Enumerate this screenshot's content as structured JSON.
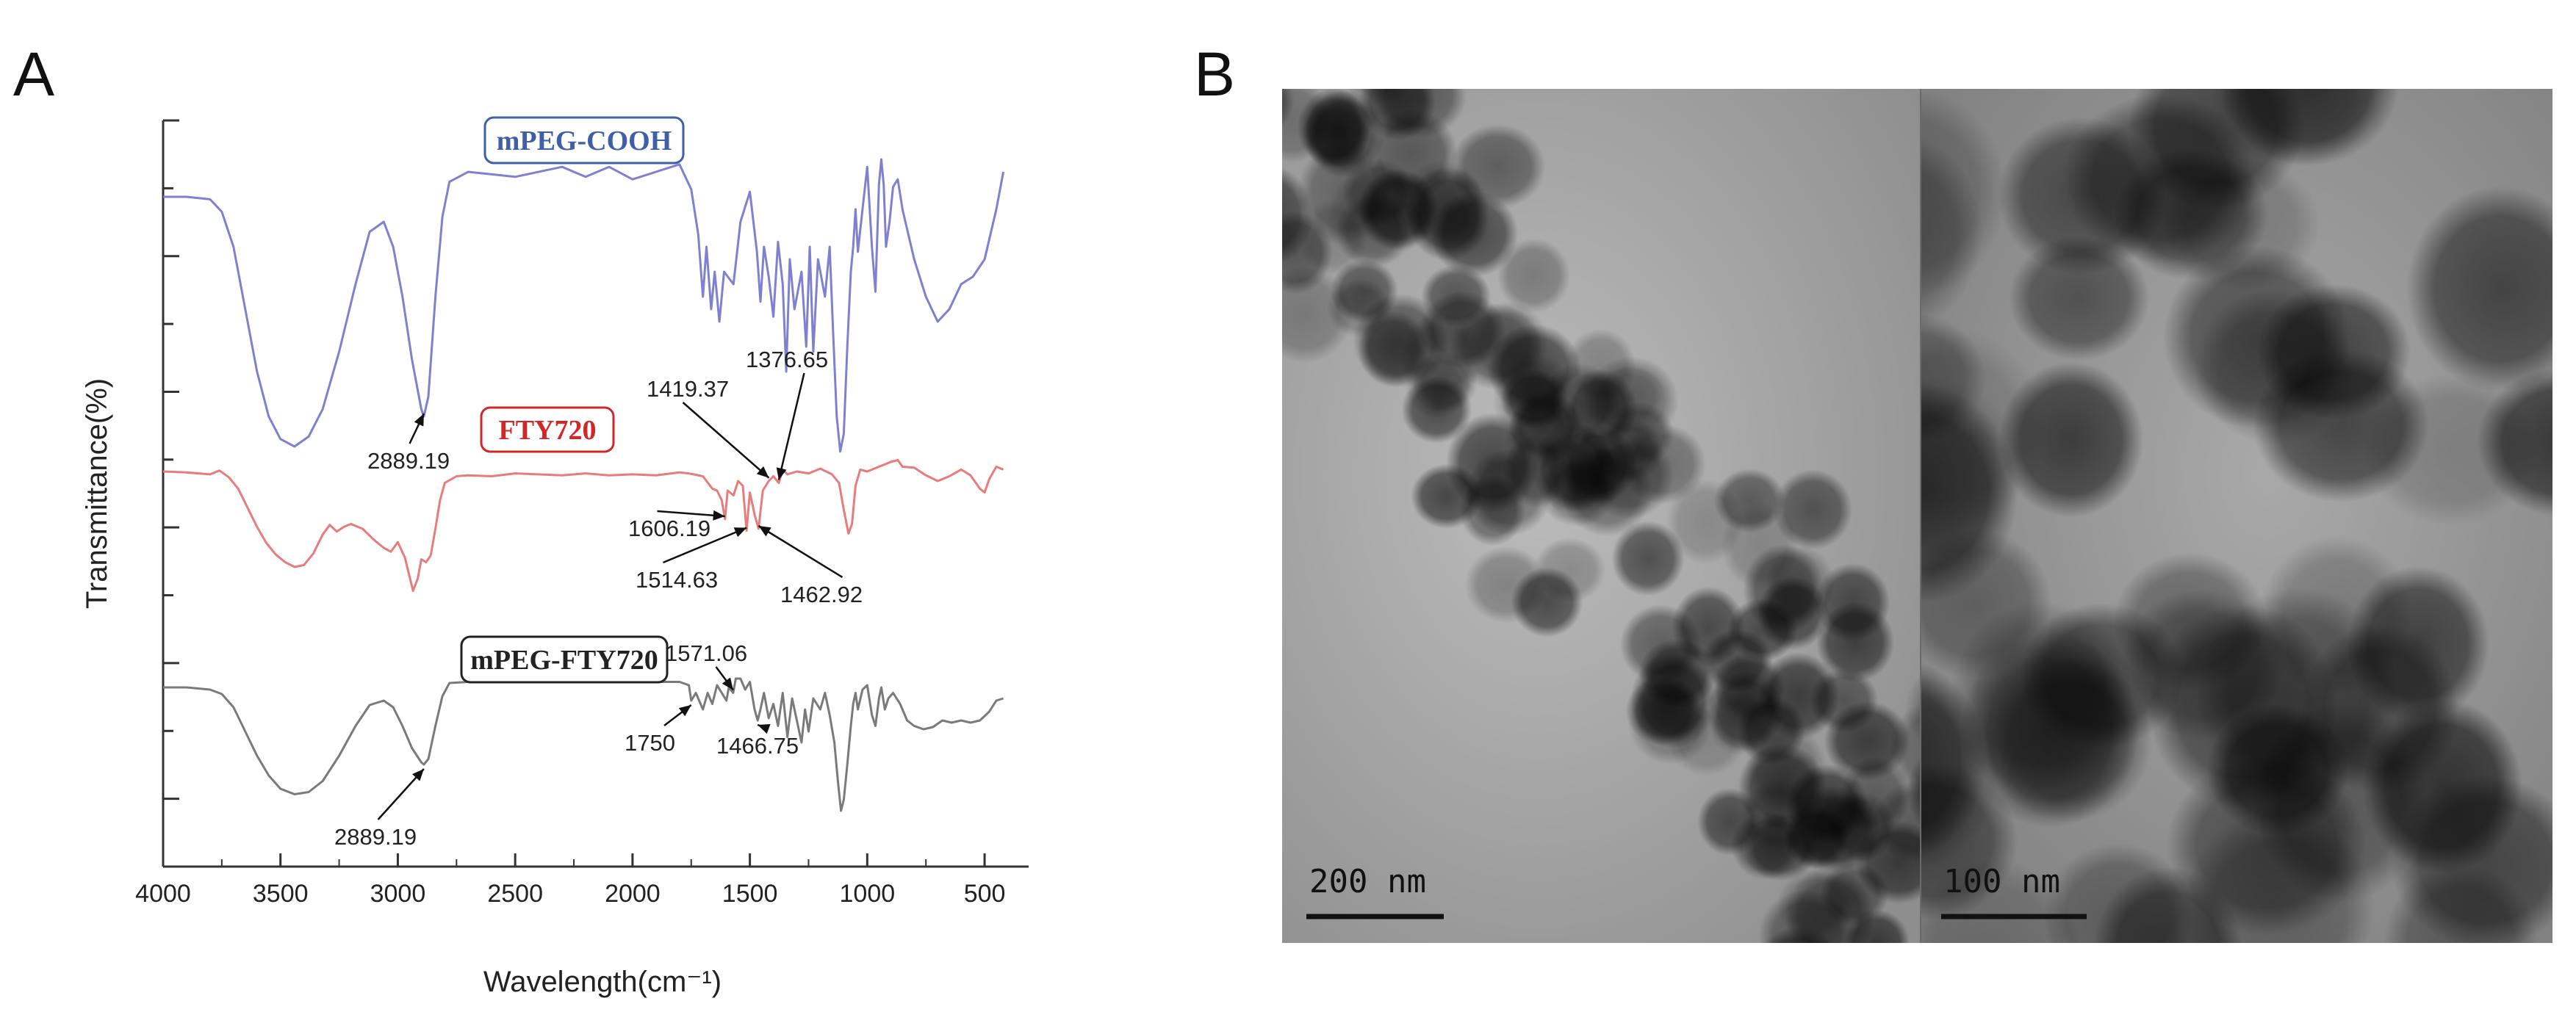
{
  "panels": {
    "a": "A",
    "b": "B"
  },
  "chart_data": {
    "type": "line",
    "title": "",
    "xlabel": "Wavelength(cm⁻¹)",
    "ylabel": "Transmittance(%)",
    "xlim": [
      4000,
      400
    ],
    "x_ticks": [
      "4000",
      "3500",
      "3000",
      "2500",
      "2000",
      "1500",
      "1000",
      "500"
    ],
    "y_tick_labels_shown": false,
    "legend_position": "inline labels above each trace",
    "series": [
      {
        "name": "mPEG-COOH",
        "color": "#7f80d0",
        "label_color": "#3f5fa8",
        "points": [
          [
            4000,
            0
          ],
          [
            3900,
            0
          ],
          [
            3800,
            -0.01
          ],
          [
            3750,
            -0.06
          ],
          [
            3700,
            -0.2
          ],
          [
            3650,
            -0.45
          ],
          [
            3600,
            -0.7
          ],
          [
            3550,
            -0.88
          ],
          [
            3500,
            -0.97
          ],
          [
            3440,
            -1.0
          ],
          [
            3380,
            -0.96
          ],
          [
            3320,
            -0.85
          ],
          [
            3250,
            -0.62
          ],
          [
            3180,
            -0.35
          ],
          [
            3120,
            -0.14
          ],
          [
            3060,
            -0.1
          ],
          [
            3020,
            -0.2
          ],
          [
            2980,
            -0.4
          ],
          [
            2940,
            -0.65
          ],
          [
            2900,
            -0.85
          ],
          [
            2889,
            -0.88
          ],
          [
            2870,
            -0.8
          ],
          [
            2840,
            -0.4
          ],
          [
            2810,
            -0.08
          ],
          [
            2780,
            0.06
          ],
          [
            2700,
            0.1
          ],
          [
            2500,
            0.08
          ],
          [
            2300,
            0.12
          ],
          [
            2200,
            0.08
          ],
          [
            2100,
            0.12
          ],
          [
            2000,
            0.07
          ],
          [
            1900,
            0.1
          ],
          [
            1800,
            0.13
          ],
          [
            1750,
            0.03
          ],
          [
            1720,
            -0.15
          ],
          [
            1700,
            -0.4
          ],
          [
            1685,
            -0.2
          ],
          [
            1665,
            -0.45
          ],
          [
            1650,
            -0.3
          ],
          [
            1630,
            -0.5
          ],
          [
            1610,
            -0.3
          ],
          [
            1570,
            -0.35
          ],
          [
            1540,
            -0.1
          ],
          [
            1500,
            0.02
          ],
          [
            1470,
            -0.22
          ],
          [
            1455,
            -0.42
          ],
          [
            1440,
            -0.2
          ],
          [
            1420,
            -0.32
          ],
          [
            1400,
            -0.48
          ],
          [
            1380,
            -0.18
          ],
          [
            1360,
            -0.35
          ],
          [
            1345,
            -0.7
          ],
          [
            1330,
            -0.25
          ],
          [
            1310,
            -0.45
          ],
          [
            1280,
            -0.3
          ],
          [
            1260,
            -0.6
          ],
          [
            1245,
            -0.2
          ],
          [
            1230,
            -0.62
          ],
          [
            1210,
            -0.25
          ],
          [
            1180,
            -0.4
          ],
          [
            1160,
            -0.2
          ],
          [
            1145,
            -0.55
          ],
          [
            1130,
            -0.88
          ],
          [
            1115,
            -1.02
          ],
          [
            1100,
            -0.95
          ],
          [
            1085,
            -0.6
          ],
          [
            1070,
            -0.3
          ],
          [
            1060,
            -0.2
          ],
          [
            1050,
            -0.05
          ],
          [
            1040,
            -0.22
          ],
          [
            1020,
            -0.05
          ],
          [
            1000,
            0.12
          ],
          [
            980,
            -0.2
          ],
          [
            965,
            -0.38
          ],
          [
            950,
            0.05
          ],
          [
            940,
            0.15
          ],
          [
            930,
            0.05
          ],
          [
            920,
            -0.2
          ],
          [
            905,
            -0.1
          ],
          [
            890,
            0.04
          ],
          [
            870,
            0.07
          ],
          [
            850,
            -0.05
          ],
          [
            800,
            -0.25
          ],
          [
            750,
            -0.4
          ],
          [
            700,
            -0.5
          ],
          [
            650,
            -0.45
          ],
          [
            600,
            -0.35
          ],
          [
            550,
            -0.32
          ],
          [
            500,
            -0.25
          ],
          [
            450,
            -0.05
          ],
          [
            420,
            0.1
          ]
        ]
      },
      {
        "name": "FTY720",
        "color": "#e87c7c",
        "label_color": "#d02828",
        "points": [
          [
            4000,
            0
          ],
          [
            3900,
            -0.01
          ],
          [
            3800,
            -0.03
          ],
          [
            3760,
            0.01
          ],
          [
            3720,
            -0.06
          ],
          [
            3680,
            -0.18
          ],
          [
            3640,
            -0.38
          ],
          [
            3600,
            -0.58
          ],
          [
            3560,
            -0.75
          ],
          [
            3520,
            -0.87
          ],
          [
            3480,
            -0.95
          ],
          [
            3440,
            -1.0
          ],
          [
            3400,
            -0.98
          ],
          [
            3360,
            -0.86
          ],
          [
            3320,
            -0.66
          ],
          [
            3290,
            -0.56
          ],
          [
            3260,
            -0.63
          ],
          [
            3230,
            -0.58
          ],
          [
            3200,
            -0.55
          ],
          [
            3150,
            -0.6
          ],
          [
            3100,
            -0.72
          ],
          [
            3060,
            -0.8
          ],
          [
            3030,
            -0.84
          ],
          [
            3000,
            -0.74
          ],
          [
            2970,
            -0.9
          ],
          [
            2955,
            -1.05
          ],
          [
            2935,
            -1.25
          ],
          [
            2915,
            -1.12
          ],
          [
            2900,
            -0.92
          ],
          [
            2880,
            -0.95
          ],
          [
            2860,
            -0.88
          ],
          [
            2840,
            -0.6
          ],
          [
            2820,
            -0.3
          ],
          [
            2800,
            -0.12
          ],
          [
            2750,
            -0.05
          ],
          [
            2700,
            -0.04
          ],
          [
            2600,
            -0.05
          ],
          [
            2500,
            -0.02
          ],
          [
            2300,
            -0.04
          ],
          [
            2200,
            -0.02
          ],
          [
            2100,
            -0.04
          ],
          [
            2000,
            -0.03
          ],
          [
            1900,
            -0.04
          ],
          [
            1800,
            -0.01
          ],
          [
            1760,
            -0.02
          ],
          [
            1700,
            -0.05
          ],
          [
            1660,
            -0.18
          ],
          [
            1640,
            -0.2
          ],
          [
            1620,
            -0.3
          ],
          [
            1606,
            -0.5
          ],
          [
            1595,
            -0.2
          ],
          [
            1570,
            -0.25
          ],
          [
            1550,
            -0.1
          ],
          [
            1530,
            -0.15
          ],
          [
            1514,
            -0.62
          ],
          [
            1500,
            -0.22
          ],
          [
            1480,
            -0.45
          ],
          [
            1463,
            -0.6
          ],
          [
            1445,
            -0.2
          ],
          [
            1420,
            -0.1
          ],
          [
            1400,
            -0.05
          ],
          [
            1377,
            -0.12
          ],
          [
            1360,
            0.02
          ],
          [
            1340,
            -0.03
          ],
          [
            1300,
            0.0
          ],
          [
            1250,
            -0.02
          ],
          [
            1200,
            0.03
          ],
          [
            1150,
            -0.03
          ],
          [
            1120,
            -0.12
          ],
          [
            1100,
            -0.4
          ],
          [
            1080,
            -0.65
          ],
          [
            1065,
            -0.55
          ],
          [
            1050,
            -0.15
          ],
          [
            1030,
            0.02
          ],
          [
            1000,
            0.0
          ],
          [
            950,
            0.05
          ],
          [
            900,
            0.1
          ],
          [
            870,
            0.12
          ],
          [
            850,
            0.05
          ],
          [
            800,
            0.04
          ],
          [
            750,
            -0.04
          ],
          [
            700,
            -0.1
          ],
          [
            650,
            -0.05
          ],
          [
            600,
            0.02
          ],
          [
            560,
            -0.04
          ],
          [
            520,
            -0.18
          ],
          [
            500,
            -0.22
          ],
          [
            480,
            -0.08
          ],
          [
            450,
            0.05
          ],
          [
            420,
            0.02
          ]
        ]
      },
      {
        "name": "mPEG-FTY720",
        "color": "#7a7a7a",
        "label_color": "#222222",
        "points": [
          [
            4000,
            0
          ],
          [
            3900,
            0
          ],
          [
            3800,
            -0.02
          ],
          [
            3750,
            -0.06
          ],
          [
            3700,
            -0.18
          ],
          [
            3650,
            -0.4
          ],
          [
            3600,
            -0.62
          ],
          [
            3550,
            -0.8
          ],
          [
            3500,
            -0.92
          ],
          [
            3440,
            -0.97
          ],
          [
            3380,
            -0.95
          ],
          [
            3320,
            -0.85
          ],
          [
            3250,
            -0.62
          ],
          [
            3180,
            -0.35
          ],
          [
            3120,
            -0.16
          ],
          [
            3060,
            -0.12
          ],
          [
            3020,
            -0.18
          ],
          [
            2980,
            -0.35
          ],
          [
            2940,
            -0.55
          ],
          [
            2900,
            -0.68
          ],
          [
            2889,
            -0.7
          ],
          [
            2870,
            -0.65
          ],
          [
            2840,
            -0.35
          ],
          [
            2810,
            -0.08
          ],
          [
            2780,
            0.04
          ],
          [
            2700,
            0.05
          ],
          [
            2500,
            0.06
          ],
          [
            2300,
            0.06
          ],
          [
            2100,
            0.05
          ],
          [
            2000,
            0.05
          ],
          [
            1900,
            0.05
          ],
          [
            1800,
            0.05
          ],
          [
            1760,
            0.02
          ],
          [
            1750,
            -0.12
          ],
          [
            1730,
            -0.05
          ],
          [
            1700,
            -0.2
          ],
          [
            1680,
            -0.05
          ],
          [
            1660,
            -0.15
          ],
          [
            1640,
            0.02
          ],
          [
            1620,
            -0.05
          ],
          [
            1600,
            -0.12
          ],
          [
            1590,
            0.0
          ],
          [
            1571,
            -0.05
          ],
          [
            1560,
            0.08
          ],
          [
            1540,
            0.08
          ],
          [
            1520,
            -0.02
          ],
          [
            1500,
            0.05
          ],
          [
            1480,
            -0.2
          ],
          [
            1467,
            -0.3
          ],
          [
            1455,
            -0.2
          ],
          [
            1440,
            -0.05
          ],
          [
            1420,
            -0.28
          ],
          [
            1400,
            -0.15
          ],
          [
            1380,
            -0.35
          ],
          [
            1360,
            -0.05
          ],
          [
            1340,
            -0.45
          ],
          [
            1320,
            -0.1
          ],
          [
            1300,
            -0.3
          ],
          [
            1280,
            -0.5
          ],
          [
            1265,
            -0.2
          ],
          [
            1250,
            -0.4
          ],
          [
            1230,
            -0.1
          ],
          [
            1200,
            -0.2
          ],
          [
            1180,
            -0.05
          ],
          [
            1160,
            -0.25
          ],
          [
            1140,
            -0.5
          ],
          [
            1125,
            -0.85
          ],
          [
            1112,
            -1.12
          ],
          [
            1100,
            -1.02
          ],
          [
            1085,
            -0.7
          ],
          [
            1070,
            -0.35
          ],
          [
            1060,
            -0.15
          ],
          [
            1050,
            -0.05
          ],
          [
            1040,
            -0.2
          ],
          [
            1020,
            -0.02
          ],
          [
            1000,
            0.02
          ],
          [
            980,
            -0.25
          ],
          [
            965,
            -0.35
          ],
          [
            950,
            -0.1
          ],
          [
            940,
            0.0
          ],
          [
            925,
            -0.2
          ],
          [
            910,
            -0.1
          ],
          [
            890,
            -0.05
          ],
          [
            860,
            -0.15
          ],
          [
            830,
            -0.3
          ],
          [
            800,
            -0.35
          ],
          [
            760,
            -0.38
          ],
          [
            720,
            -0.36
          ],
          [
            680,
            -0.3
          ],
          [
            640,
            -0.32
          ],
          [
            600,
            -0.3
          ],
          [
            560,
            -0.32
          ],
          [
            520,
            -0.3
          ],
          [
            480,
            -0.22
          ],
          [
            450,
            -0.12
          ],
          [
            420,
            -0.1
          ]
        ]
      }
    ],
    "annotations": [
      {
        "text": "2889.19",
        "series": 0,
        "x": 2889
      },
      {
        "text": "1419.37",
        "series": 1,
        "x": 1419
      },
      {
        "text": "1376.65",
        "series": 1,
        "x": 1377
      },
      {
        "text": "1606.19",
        "series": 1,
        "x": 1606
      },
      {
        "text": "1514.63",
        "series": 1,
        "x": 1514
      },
      {
        "text": "1462.92",
        "series": 1,
        "x": 1463
      },
      {
        "text": "1571.06",
        "series": 2,
        "x": 1571
      },
      {
        "text": "1750",
        "series": 2,
        "x": 1750
      },
      {
        "text": "1466.75",
        "series": 2,
        "x": 1467
      },
      {
        "text": "2889.19",
        "series": 2,
        "x": 2889
      }
    ]
  },
  "micrographs": [
    {
      "scale_bar": "200 nm"
    },
    {
      "scale_bar": "100 nm"
    }
  ]
}
